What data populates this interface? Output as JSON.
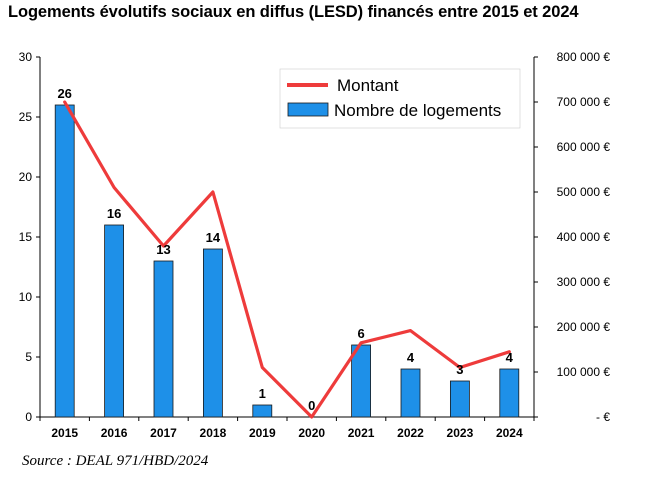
{
  "title": "Logements évolutifs sociaux en diffus (LESD) financés entre 2015 et 2024",
  "source": "Source : DEAL 971/HBD/2024",
  "chart_data": {
    "type": "bar",
    "categories": [
      "2015",
      "2016",
      "2017",
      "2018",
      "2019",
      "2020",
      "2021",
      "2022",
      "2023",
      "2024"
    ],
    "series": [
      {
        "name": "Nombre de logements",
        "type": "bar",
        "axis": "left",
        "color": "#1e90e8",
        "values": [
          26,
          16,
          13,
          14,
          1,
          0,
          6,
          4,
          3,
          4
        ],
        "data_labels": [
          "26",
          "16",
          "13",
          "14",
          "1",
          "0",
          "6",
          "4",
          "3",
          "4"
        ]
      },
      {
        "name": "Montant",
        "type": "line",
        "axis": "right",
        "color": "#ee3b3b",
        "values": [
          700000,
          510000,
          380000,
          500000,
          110000,
          0,
          165000,
          192000,
          110000,
          145000
        ]
      }
    ],
    "left_axis": {
      "ylim": [
        0,
        30
      ],
      "ticks": [
        "0",
        "5",
        "10",
        "15",
        "20",
        "25",
        "30"
      ]
    },
    "right_axis": {
      "ylim": [
        0,
        800000
      ],
      "ticks": [
        "- €",
        "100 000 €",
        "200 000 €",
        "300 000 €",
        "400 000 €",
        "500 000 €",
        "600 000 €",
        "700 000 €",
        "800 000 €"
      ]
    },
    "legend": {
      "position": "top-right",
      "entries": [
        "Montant",
        "Nombre de logements"
      ]
    },
    "grid": false
  }
}
